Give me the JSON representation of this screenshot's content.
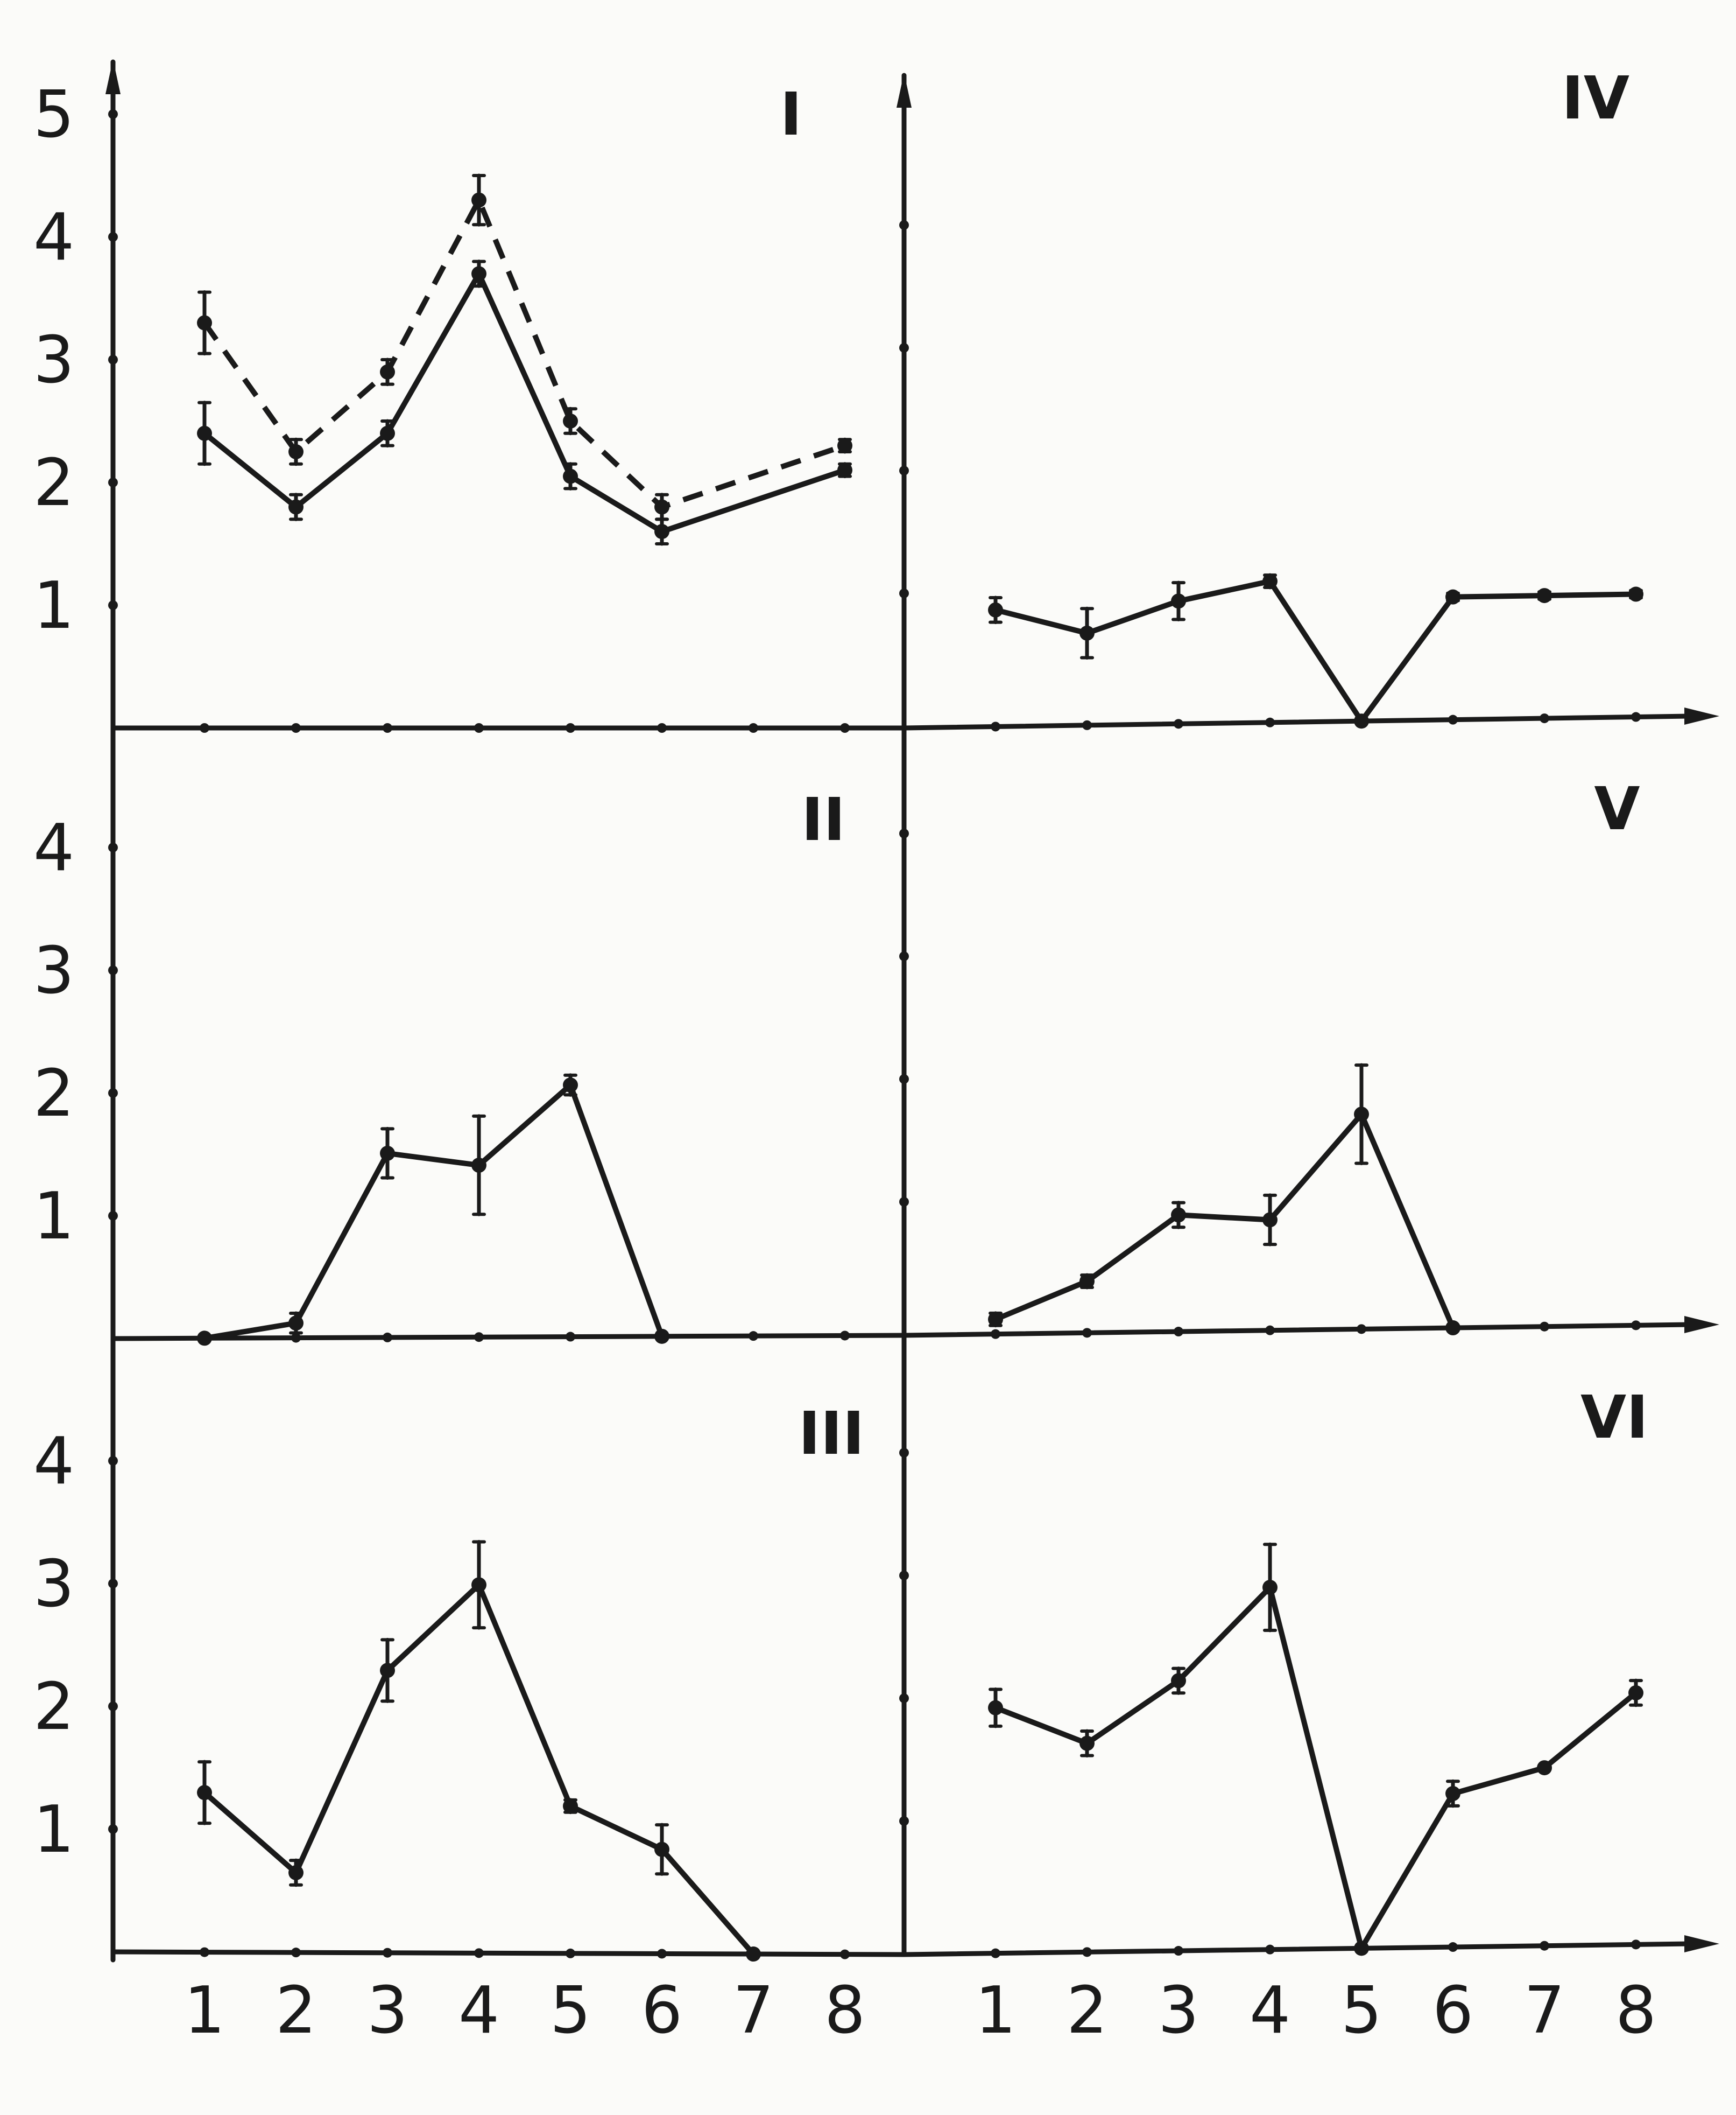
{
  "chart_data": [
    {
      "type": "line",
      "panel": "I",
      "x": [
        1,
        2,
        3,
        4,
        5,
        6,
        7,
        8
      ],
      "ylim": [
        0,
        5
      ],
      "ytick_labels": [
        "1",
        "2",
        "3",
        "4",
        "5"
      ],
      "series": [
        {
          "style": "dashed",
          "x": [
            1,
            2,
            3,
            4,
            5,
            6,
            8
          ],
          "values": [
            3.3,
            2.25,
            2.9,
            4.3,
            2.5,
            1.8,
            2.3
          ],
          "errors": [
            0.25,
            0.1,
            0.1,
            0.2,
            0.1,
            0.1,
            0.05
          ]
        },
        {
          "style": "solid",
          "x": [
            1,
            2,
            3,
            4,
            5,
            6,
            8
          ],
          "values": [
            2.4,
            1.8,
            2.4,
            3.7,
            2.05,
            1.6,
            2.1
          ],
          "errors": [
            0.25,
            0.1,
            0.1,
            0.1,
            0.1,
            0.1,
            0.05
          ]
        }
      ]
    },
    {
      "type": "line",
      "panel": "II",
      "x": [
        1,
        2,
        3,
        4,
        5,
        6,
        7,
        8
      ],
      "ylim": [
        0,
        4
      ],
      "ytick_labels": [
        "1",
        "2",
        "3",
        "4"
      ],
      "series": [
        {
          "style": "solid",
          "x": [
            1,
            2,
            3,
            4,
            5,
            6
          ],
          "values": [
            0,
            0.12,
            1.5,
            1.4,
            2.05,
            0
          ],
          "errors": [
            0,
            0.08,
            0.2,
            0.4,
            0.08,
            0
          ]
        }
      ]
    },
    {
      "type": "line",
      "panel": "III",
      "x": [
        1,
        2,
        3,
        4,
        5,
        6,
        7,
        8
      ],
      "ylim": [
        0,
        4
      ],
      "ytick_labels": [
        "1",
        "2",
        "3",
        "4"
      ],
      "series": [
        {
          "style": "solid",
          "x": [
            1,
            2,
            3,
            4,
            5,
            6,
            7
          ],
          "values": [
            1.3,
            0.65,
            2.3,
            3.0,
            1.2,
            0.85,
            0
          ],
          "errors": [
            0.25,
            0.1,
            0.25,
            0.35,
            0.05,
            0.2,
            0
          ]
        }
      ]
    },
    {
      "type": "line",
      "panel": "IV",
      "x": [
        1,
        2,
        3,
        4,
        5,
        6,
        7,
        8
      ],
      "ylim": [
        0,
        5
      ],
      "series": [
        {
          "style": "solid",
          "x": [
            1,
            2,
            3,
            4,
            5,
            6,
            7,
            8
          ],
          "values": [
            0.95,
            0.75,
            1.0,
            1.15,
            0,
            1.0,
            1.0,
            1.0
          ],
          "errors": [
            0.1,
            0.2,
            0.15,
            0.05,
            0,
            0.03,
            0.03,
            0.03
          ]
        }
      ]
    },
    {
      "type": "line",
      "panel": "V",
      "x": [
        1,
        2,
        3,
        4,
        5,
        6,
        7,
        8
      ],
      "ylim": [
        0,
        4
      ],
      "series": [
        {
          "style": "solid",
          "x": [
            1,
            2,
            3,
            4,
            5,
            6
          ],
          "values": [
            0.12,
            0.42,
            0.95,
            0.9,
            1.75,
            0
          ],
          "errors": [
            0.05,
            0.05,
            0.1,
            0.2,
            0.4,
            0
          ]
        }
      ]
    },
    {
      "type": "line",
      "panel": "VI",
      "x": [
        1,
        2,
        3,
        4,
        5,
        6,
        7,
        8
      ],
      "ylim": [
        0,
        4
      ],
      "series": [
        {
          "style": "solid",
          "x": [
            1,
            2,
            3,
            4,
            5,
            6,
            7,
            8
          ],
          "values": [
            2.0,
            1.7,
            2.2,
            2.95,
            0,
            1.25,
            1.45,
            2.05
          ],
          "errors": [
            0.15,
            0.1,
            0.1,
            0.35,
            0,
            0.1,
            0,
            0.1
          ]
        }
      ]
    }
  ],
  "x_tick_labels": [
    "1",
    "2",
    "3",
    "4",
    "5",
    "6",
    "7",
    "8"
  ],
  "colors": {
    "ink": "#1a1a1a",
    "paper": "#fbfbf9"
  }
}
